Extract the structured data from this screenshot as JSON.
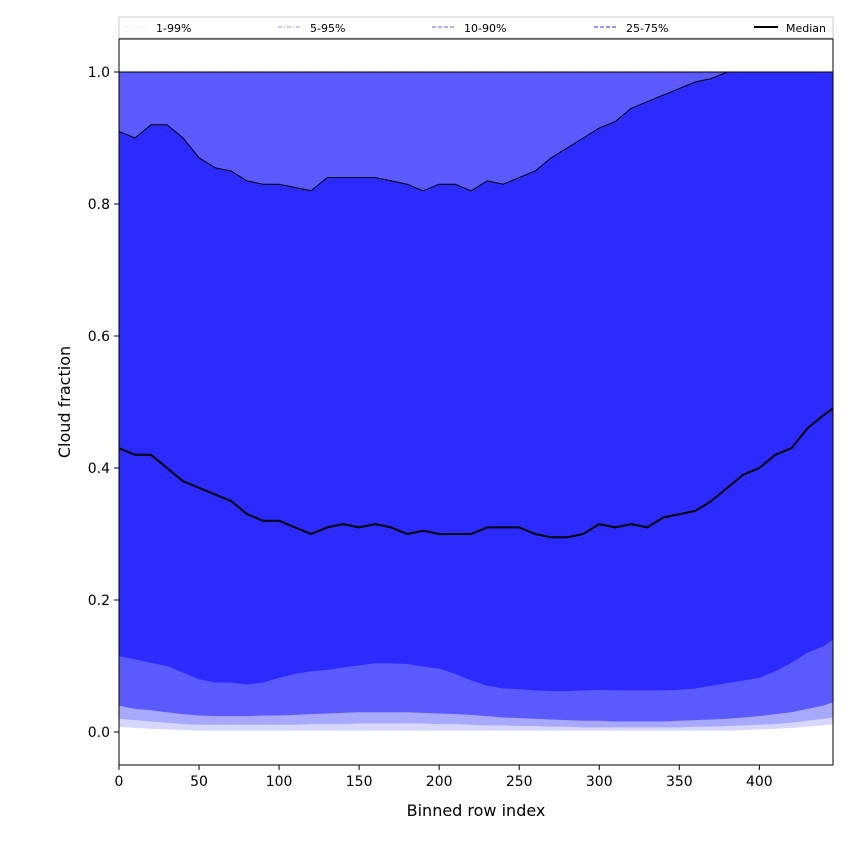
{
  "chart_data": {
    "type": "area",
    "xlabel": "Binned row index",
    "ylabel": "Cloud fraction",
    "xlim": [
      0,
      446
    ],
    "ylim": [
      -0.05,
      1.05
    ],
    "xticks": [
      0,
      50,
      100,
      150,
      200,
      250,
      300,
      350,
      400
    ],
    "yticks": [
      0.0,
      0.2,
      0.4,
      0.6,
      0.8,
      1.0
    ],
    "xtick_labels": [
      "0",
      "50",
      "100",
      "150",
      "200",
      "250",
      "300",
      "350",
      "400"
    ],
    "ytick_labels": [
      "0.0",
      "0.2",
      "0.4",
      "0.6",
      "0.8",
      "1.0"
    ],
    "legend_position": "top",
    "legend": [
      {
        "label": "1-99%",
        "style": "dotted",
        "color": "#d9d9ff"
      },
      {
        "label": "5-95%",
        "style": "dashdot",
        "color": "#a6a6ff"
      },
      {
        "label": "10-90%",
        "style": "dashed",
        "color": "#7f7fff"
      },
      {
        "label": "25-75%",
        "style": "dashed",
        "color": "#5555ff"
      },
      {
        "label": "Median",
        "style": "solid",
        "color": "#000000"
      }
    ],
    "x": [
      0,
      10,
      20,
      30,
      40,
      50,
      60,
      70,
      80,
      90,
      100,
      110,
      120,
      130,
      140,
      150,
      160,
      170,
      180,
      190,
      200,
      210,
      220,
      230,
      240,
      250,
      260,
      270,
      280,
      290,
      300,
      310,
      320,
      330,
      340,
      350,
      360,
      370,
      380,
      390,
      400,
      410,
      420,
      430,
      440,
      446
    ],
    "series": [
      {
        "name": "Median",
        "values": [
          0.43,
          0.42,
          0.42,
          0.4,
          0.38,
          0.37,
          0.36,
          0.35,
          0.33,
          0.32,
          0.32,
          0.31,
          0.3,
          0.31,
          0.315,
          0.31,
          0.315,
          0.31,
          0.3,
          0.305,
          0.3,
          0.3,
          0.3,
          0.31,
          0.31,
          0.31,
          0.3,
          0.295,
          0.295,
          0.3,
          0.315,
          0.31,
          0.315,
          0.31,
          0.325,
          0.33,
          0.335,
          0.35,
          0.37,
          0.39,
          0.4,
          0.42,
          0.43,
          0.46,
          0.48,
          0.49
        ]
      },
      {
        "name": "q75",
        "values": [
          0.91,
          0.9,
          0.92,
          0.92,
          0.9,
          0.87,
          0.855,
          0.85,
          0.835,
          0.83,
          0.83,
          0.825,
          0.82,
          0.84,
          0.84,
          0.84,
          0.84,
          0.835,
          0.83,
          0.82,
          0.83,
          0.83,
          0.82,
          0.835,
          0.83,
          0.84,
          0.85,
          0.87,
          0.885,
          0.9,
          0.915,
          0.925,
          0.945,
          0.955,
          0.965,
          0.975,
          0.985,
          0.99,
          1.0,
          1.0,
          1.0,
          1.0,
          1.0,
          1.0,
          1.0,
          1.0
        ]
      },
      {
        "name": "q25",
        "values": [
          0.115,
          0.11,
          0.105,
          0.1,
          0.09,
          0.08,
          0.075,
          0.075,
          0.072,
          0.075,
          0.082,
          0.088,
          0.092,
          0.094,
          0.098,
          0.101,
          0.104,
          0.104,
          0.103,
          0.099,
          0.096,
          0.088,
          0.078,
          0.07,
          0.066,
          0.065,
          0.063,
          0.062,
          0.062,
          0.063,
          0.064,
          0.063,
          0.063,
          0.063,
          0.063,
          0.064,
          0.066,
          0.07,
          0.074,
          0.078,
          0.082,
          0.092,
          0.105,
          0.12,
          0.13,
          0.14
        ]
      },
      {
        "name": "q10",
        "values": [
          0.04,
          0.035,
          0.033,
          0.03,
          0.027,
          0.025,
          0.024,
          0.024,
          0.024,
          0.025,
          0.025,
          0.026,
          0.027,
          0.028,
          0.029,
          0.03,
          0.03,
          0.03,
          0.03,
          0.029,
          0.028,
          0.027,
          0.026,
          0.024,
          0.022,
          0.021,
          0.02,
          0.019,
          0.018,
          0.017,
          0.017,
          0.016,
          0.016,
          0.016,
          0.016,
          0.017,
          0.018,
          0.019,
          0.02,
          0.022,
          0.024,
          0.027,
          0.03,
          0.035,
          0.04,
          0.045
        ]
      },
      {
        "name": "q5",
        "values": [
          0.02,
          0.018,
          0.016,
          0.014,
          0.012,
          0.011,
          0.011,
          0.011,
          0.011,
          0.011,
          0.011,
          0.011,
          0.012,
          0.012,
          0.012,
          0.013,
          0.013,
          0.013,
          0.013,
          0.013,
          0.012,
          0.012,
          0.011,
          0.01,
          0.01,
          0.009,
          0.009,
          0.008,
          0.008,
          0.007,
          0.007,
          0.007,
          0.007,
          0.007,
          0.007,
          0.007,
          0.008,
          0.008,
          0.009,
          0.01,
          0.011,
          0.012,
          0.014,
          0.017,
          0.02,
          0.022
        ]
      },
      {
        "name": "q1",
        "values": [
          0.008,
          0.006,
          0.005,
          0.004,
          0.003,
          0.002,
          0.002,
          0.002,
          0.002,
          0.002,
          0.002,
          0.002,
          0.002,
          0.002,
          0.002,
          0.002,
          0.002,
          0.002,
          0.002,
          0.002,
          0.002,
          0.002,
          0.002,
          0.002,
          0.002,
          0.002,
          0.002,
          0.002,
          0.002,
          0.002,
          0.002,
          0.002,
          0.002,
          0.002,
          0.002,
          0.002,
          0.002,
          0.002,
          0.002,
          0.003,
          0.004,
          0.005,
          0.006,
          0.008,
          0.01,
          0.012
        ]
      },
      {
        "name": "q90",
        "values": [
          1.0,
          1.0,
          1.0,
          1.0,
          1.0,
          1.0,
          1.0,
          1.0,
          1.0,
          1.0,
          1.0,
          1.0,
          1.0,
          1.0,
          1.0,
          1.0,
          1.0,
          1.0,
          1.0,
          1.0,
          1.0,
          1.0,
          1.0,
          1.0,
          1.0,
          1.0,
          1.0,
          1.0,
          1.0,
          1.0,
          1.0,
          1.0,
          1.0,
          1.0,
          1.0,
          1.0,
          1.0,
          1.0,
          1.0,
          1.0,
          1.0,
          1.0,
          1.0,
          1.0,
          1.0,
          1.0
        ]
      }
    ],
    "band_colors": {
      "q1_q99": "#d6d6ff",
      "q5_q95": "#a8a8ff",
      "q10_q90": "#5a5aff",
      "q25_q75": "#2b2bff"
    }
  }
}
